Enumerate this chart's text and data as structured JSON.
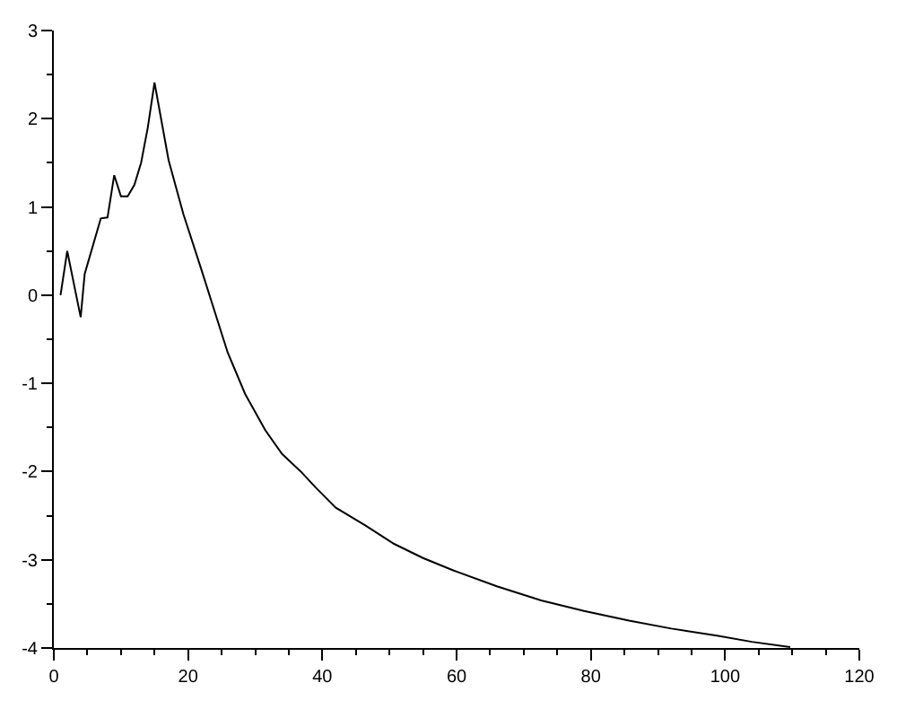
{
  "chart_data": {
    "type": "line",
    "x": [
      1,
      2,
      4,
      4.6,
      7,
      8,
      9,
      10,
      11,
      12,
      13,
      14,
      15,
      17.1,
      19.3,
      21.9,
      25.9,
      28.5,
      31.5,
      34,
      36.8,
      39,
      42,
      46.4,
      50.7,
      55,
      59.5,
      66,
      72.6,
      79,
      85.7,
      92,
      98.8,
      104,
      109.7
    ],
    "series": [
      {
        "color": "#000000",
        "values": [
          0,
          0.5,
          -0.25,
          0.24,
          0.87,
          0.88,
          1.36,
          1.12,
          1.12,
          1.25,
          1.5,
          1.9,
          2.41,
          1.53,
          0.92,
          0.31,
          -0.65,
          -1.12,
          -1.53,
          -1.8,
          -2.0,
          -2.18,
          -2.41,
          -2.61,
          -2.82,
          -2.98,
          -3.12,
          -3.3,
          -3.46,
          -3.58,
          -3.69,
          -3.78,
          -3.86,
          -3.93,
          -3.99
        ]
      }
    ],
    "xlim": [
      0,
      120
    ],
    "xticks": [
      0,
      20,
      40,
      60,
      80,
      100,
      120
    ],
    "ylim": [
      -4,
      3
    ],
    "yticks": [
      -4,
      -3,
      -2,
      -1,
      0,
      1,
      2,
      3
    ],
    "grid": false,
    "marker": "none",
    "line_style": "solid"
  }
}
